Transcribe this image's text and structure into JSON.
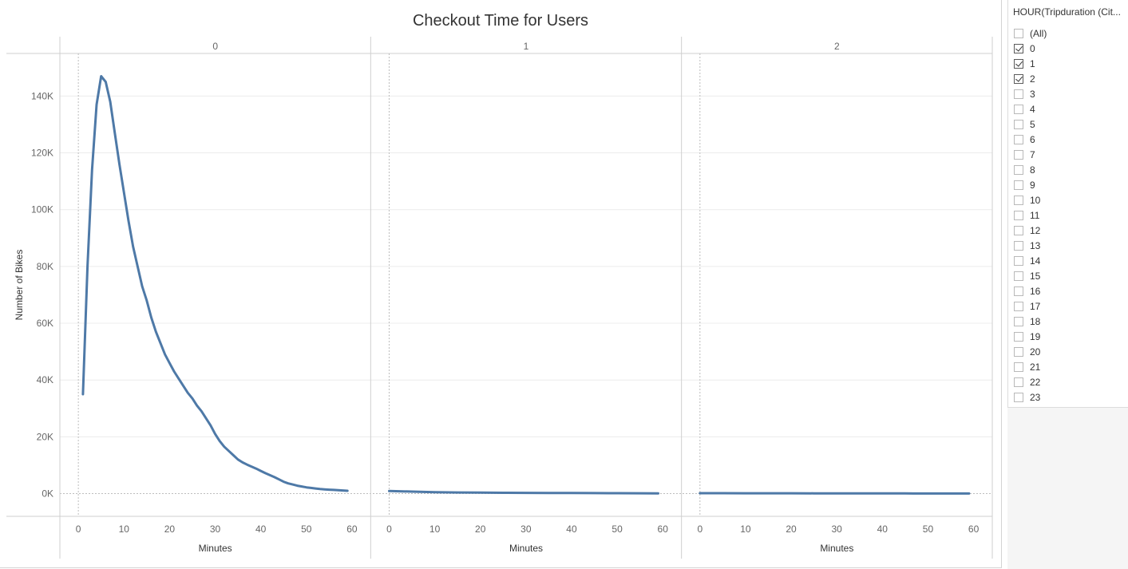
{
  "chart_data": {
    "type": "line",
    "title": "Checkout Time for Users",
    "ylabel": "Number of Bikes",
    "xlabel": "Minutes",
    "ylim": [
      -8000,
      155000
    ],
    "xlim": [
      -3,
      62
    ],
    "y_ticks": [
      0,
      20000,
      40000,
      60000,
      80000,
      100000,
      120000,
      140000
    ],
    "y_tick_labels": [
      "0K",
      "20K",
      "40K",
      "60K",
      "80K",
      "100K",
      "120K",
      "140K"
    ],
    "x_ticks": [
      0,
      10,
      20,
      30,
      40,
      50,
      60
    ],
    "x_tick_labels": [
      "0",
      "10",
      "20",
      "30",
      "40",
      "50",
      "60"
    ],
    "grid": true,
    "line_color": "#4e79a7",
    "panels": [
      {
        "header": "0",
        "series": [
          {
            "x": [
              1,
              2,
              3,
              4,
              5,
              6,
              7,
              8,
              9,
              10,
              11,
              12,
              13,
              14,
              15,
              16,
              17,
              18,
              19,
              20,
              21,
              22,
              23,
              24,
              25,
              26,
              27,
              28,
              29,
              30,
              31,
              32,
              33,
              34,
              35,
              36,
              37,
              38,
              39,
              40,
              41,
              42,
              43,
              44,
              45,
              46,
              47,
              48,
              49,
              50,
              51,
              52,
              53,
              54,
              55,
              56,
              57,
              58,
              59
            ],
            "y": [
              35000,
              80000,
              114000,
              137000,
              147000,
              145000,
              138000,
              127000,
              116000,
              106000,
              96000,
              87000,
              80000,
              73000,
              68000,
              62000,
              57000,
              53000,
              49000,
              46000,
              43000,
              40500,
              38000,
              35500,
              33500,
              31000,
              29000,
              26500,
              24000,
              21000,
              18500,
              16500,
              15000,
              13500,
              12000,
              11000,
              10200,
              9500,
              8800,
              8000,
              7200,
              6500,
              5800,
              5000,
              4200,
              3600,
              3200,
              2800,
              2500,
              2200,
              2000,
              1800,
              1600,
              1500,
              1400,
              1300,
              1200,
              1100,
              1000
            ]
          }
        ]
      },
      {
        "header": "1",
        "series": [
          {
            "x": [
              0,
              5,
              10,
              15,
              20,
              25,
              30,
              35,
              40,
              45,
              50,
              55,
              59
            ],
            "y": [
              900,
              700,
              500,
              400,
              350,
              300,
              250,
              220,
              200,
              180,
              150,
              120,
              100
            ]
          }
        ]
      },
      {
        "header": "2",
        "series": [
          {
            "x": [
              0,
              5,
              10,
              15,
              20,
              25,
              30,
              35,
              40,
              45,
              50,
              55,
              59
            ],
            "y": [
              150,
              140,
              130,
              120,
              110,
              100,
              90,
              80,
              70,
              60,
              50,
              40,
              30
            ]
          }
        ]
      }
    ]
  },
  "filter": {
    "title": "HOUR(Tripduration (Cit...",
    "items": [
      {
        "label": "(All)",
        "checked": false
      },
      {
        "label": "0",
        "checked": true
      },
      {
        "label": "1",
        "checked": true
      },
      {
        "label": "2",
        "checked": true
      },
      {
        "label": "3",
        "checked": false
      },
      {
        "label": "4",
        "checked": false
      },
      {
        "label": "5",
        "checked": false
      },
      {
        "label": "6",
        "checked": false
      },
      {
        "label": "7",
        "checked": false
      },
      {
        "label": "8",
        "checked": false
      },
      {
        "label": "9",
        "checked": false
      },
      {
        "label": "10",
        "checked": false
      },
      {
        "label": "11",
        "checked": false
      },
      {
        "label": "12",
        "checked": false
      },
      {
        "label": "13",
        "checked": false
      },
      {
        "label": "14",
        "checked": false
      },
      {
        "label": "15",
        "checked": false
      },
      {
        "label": "16",
        "checked": false
      },
      {
        "label": "17",
        "checked": false
      },
      {
        "label": "18",
        "checked": false
      },
      {
        "label": "19",
        "checked": false
      },
      {
        "label": "20",
        "checked": false
      },
      {
        "label": "21",
        "checked": false
      },
      {
        "label": "22",
        "checked": false
      },
      {
        "label": "23",
        "checked": false
      }
    ]
  }
}
